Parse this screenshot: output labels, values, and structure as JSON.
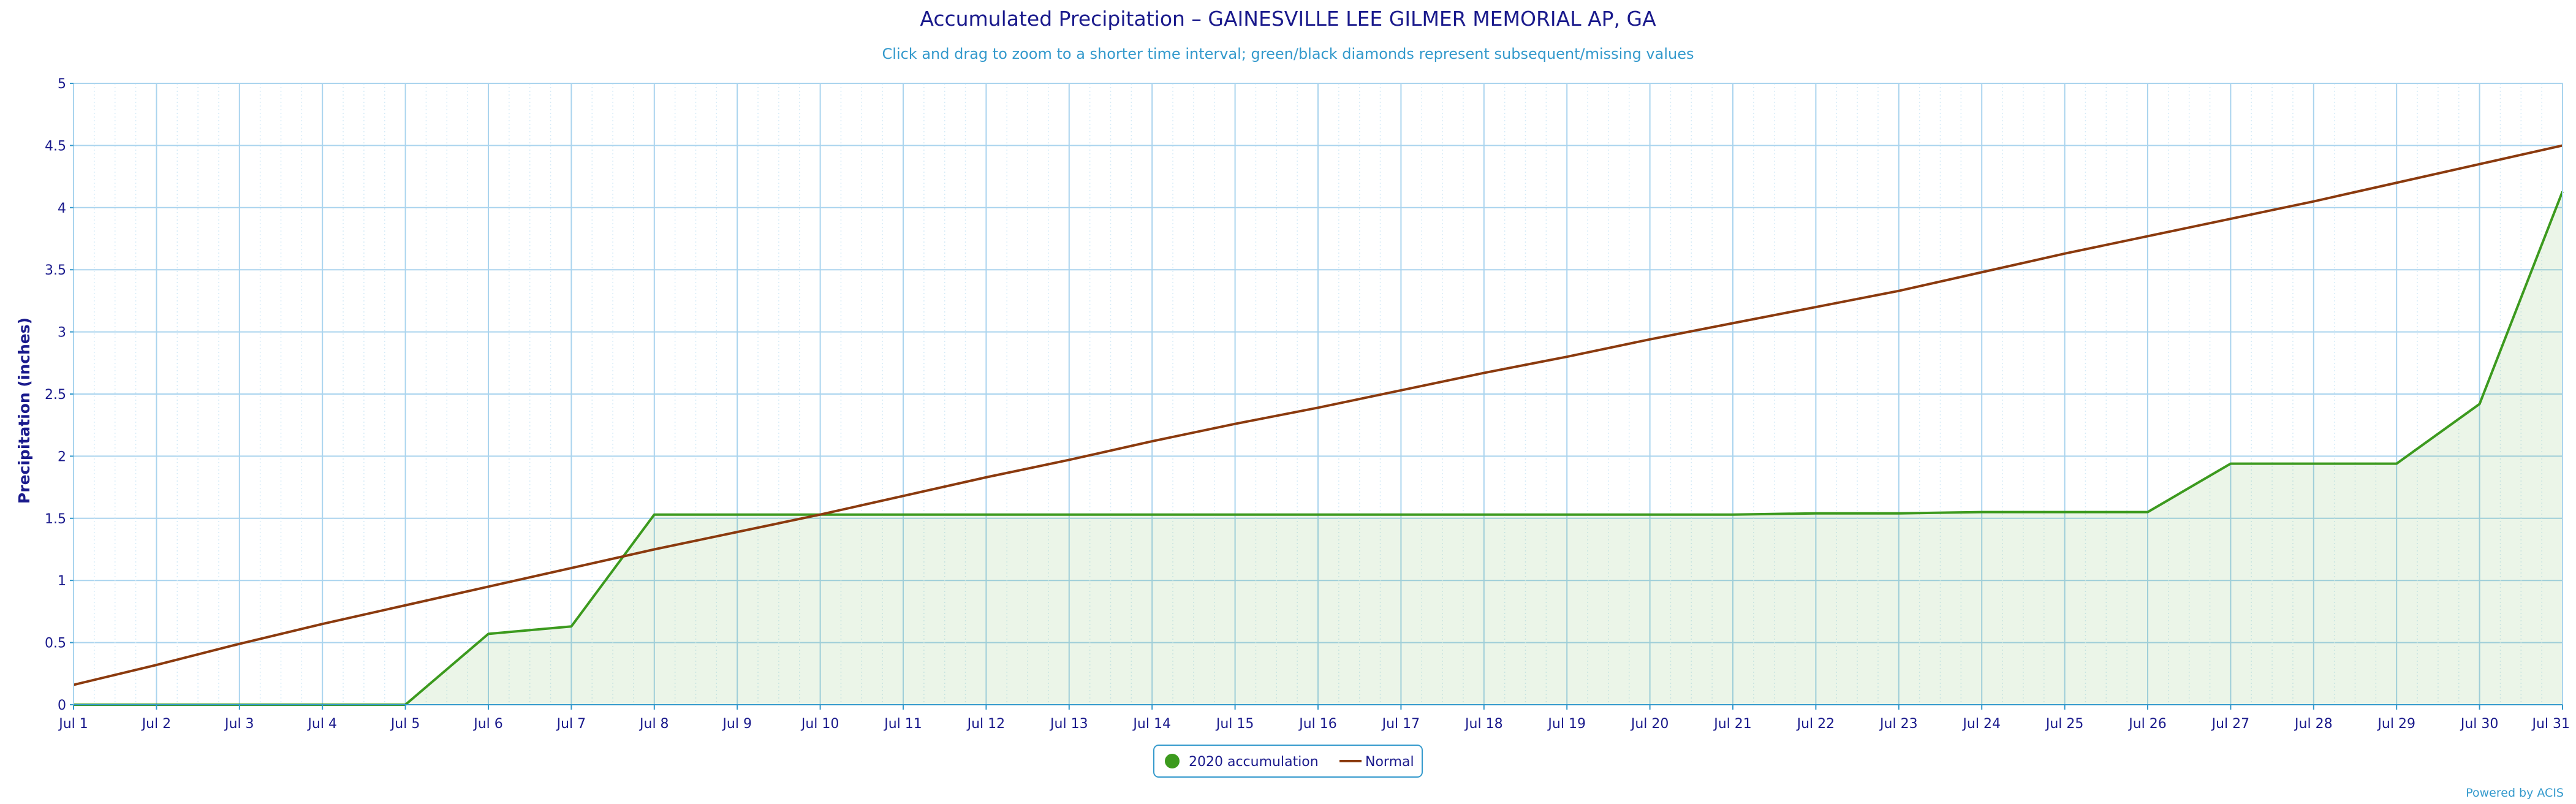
{
  "chart_data": {
    "type": "line",
    "title": "Accumulated Precipitation – GAINESVILLE LEE GILMER MEMORIAL AP, GA",
    "subtitle": "Click and drag to zoom to a shorter time interval; green/black diamonds represent subsequent/missing values",
    "ylabel": "Precipitation (inches)",
    "xlabel": "",
    "ylim": [
      0,
      5
    ],
    "yticks": [
      "0",
      "0.5",
      "1",
      "1.5",
      "2",
      "2.5",
      "3",
      "3.5",
      "4",
      "4.5",
      "5"
    ],
    "categories": [
      "Jul 1",
      "Jul 2",
      "Jul 3",
      "Jul 4",
      "Jul 5",
      "Jul 6",
      "Jul 7",
      "Jul 8",
      "Jul 9",
      "Jul 10",
      "Jul 11",
      "Jul 12",
      "Jul 13",
      "Jul 14",
      "Jul 15",
      "Jul 16",
      "Jul 17",
      "Jul 18",
      "Jul 19",
      "Jul 20",
      "Jul 21",
      "Jul 22",
      "Jul 23",
      "Jul 24",
      "Jul 25",
      "Jul 26",
      "Jul 27",
      "Jul 28",
      "Jul 29",
      "Jul 30",
      "Jul 31"
    ],
    "grid": true,
    "legend_position": "bottom-center",
    "series": [
      {
        "name": "2020 accumulation",
        "color": "#3c9a1e",
        "fill": "area",
        "values": [
          0,
          0,
          0,
          0,
          0,
          0.57,
          0.63,
          1.53,
          1.53,
          1.53,
          1.53,
          1.53,
          1.53,
          1.53,
          1.53,
          1.53,
          1.53,
          1.53,
          1.53,
          1.53,
          1.53,
          1.54,
          1.54,
          1.55,
          1.55,
          1.55,
          1.94,
          1.94,
          1.94,
          2.42,
          4.13
        ]
      },
      {
        "name": "Normal",
        "color": "#8b3a0e",
        "values": [
          0.16,
          0.32,
          0.49,
          0.65,
          0.8,
          0.95,
          1.1,
          1.25,
          1.39,
          1.53,
          1.68,
          1.83,
          1.97,
          2.12,
          2.26,
          2.39,
          2.53,
          2.67,
          2.8,
          2.94,
          3.07,
          3.2,
          3.33,
          3.48,
          3.63,
          3.77,
          3.91,
          4.05,
          4.2,
          4.35,
          4.5
        ]
      }
    ]
  },
  "credit": "Powered by ACIS"
}
